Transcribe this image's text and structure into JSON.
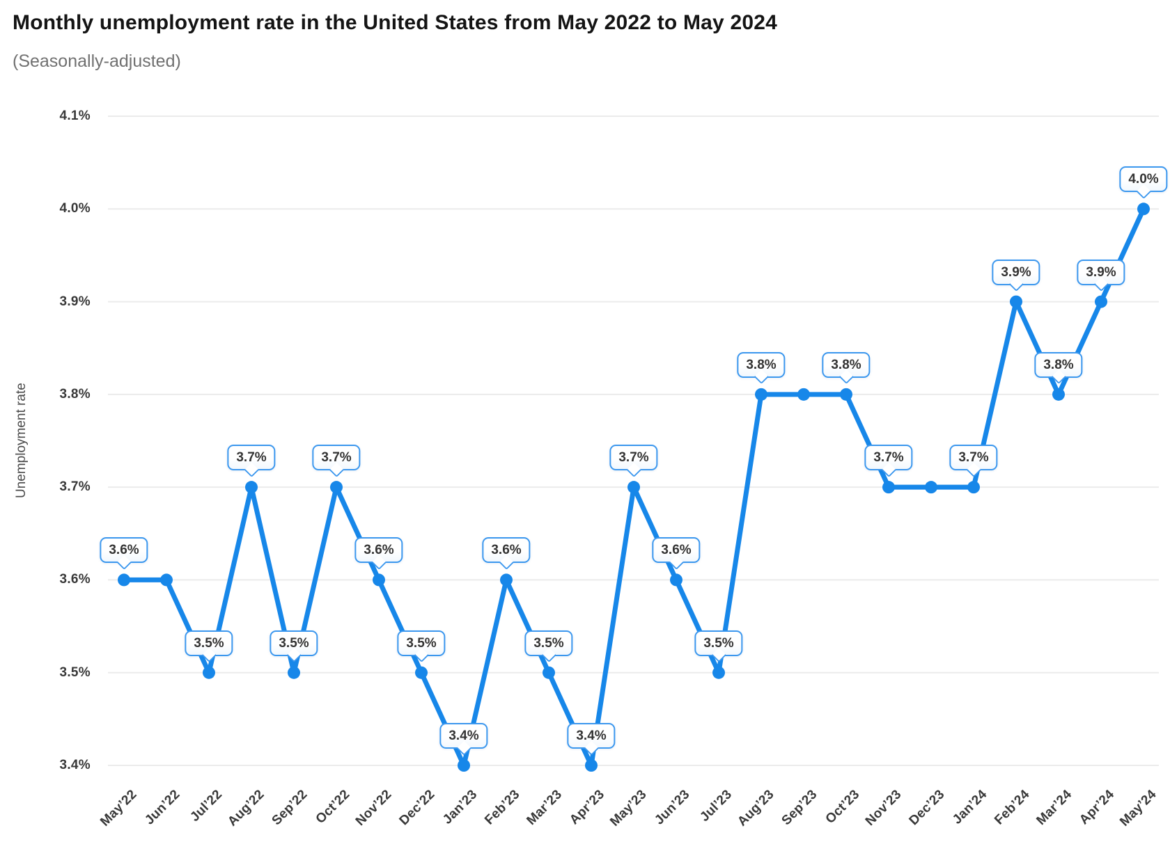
{
  "chart_data": {
    "type": "line",
    "title": "Monthly unemployment rate in the United States from May 2022 to May 2024",
    "subtitle": "(Seasonally-adjusted)",
    "xlabel": "",
    "ylabel": "Unemployment rate",
    "categories": [
      "May’22",
      "Jun’22",
      "Jul’22",
      "Aug’22",
      "Sep’22",
      "Oct’22",
      "Nov’22",
      "Dec’22",
      "Jan’23",
      "Feb’23",
      "Mar’23",
      "Apr’23",
      "May’23",
      "Jun’23",
      "Jul’23",
      "Aug’23",
      "Sep’23",
      "Oct’23",
      "Nov’23",
      "Dec’23",
      "Jan’24",
      "Feb’24",
      "Mar’24",
      "Apr’24",
      "May’24"
    ],
    "series": [
      {
        "name": "Unemployment rate",
        "values": [
          3.6,
          3.6,
          3.5,
          3.7,
          3.5,
          3.7,
          3.6,
          3.5,
          3.4,
          3.6,
          3.5,
          3.4,
          3.7,
          3.6,
          3.5,
          3.8,
          3.8,
          3.8,
          3.7,
          3.7,
          3.7,
          3.9,
          3.8,
          3.9,
          4.0
        ]
      }
    ],
    "point_labels": [
      "3.6%",
      null,
      "3.5%",
      "3.7%",
      "3.5%",
      "3.7%",
      "3.6%",
      "3.5%",
      "3.4%",
      "3.6%",
      "3.5%",
      "3.4%",
      "3.7%",
      "3.6%",
      "3.5%",
      "3.8%",
      null,
      "3.8%",
      "3.7%",
      null,
      "3.7%",
      "3.9%",
      "3.8%",
      "3.9%",
      "4.0%"
    ],
    "yticks": [
      {
        "value": 4.1,
        "label": "4.1%"
      },
      {
        "value": 4.0,
        "label": "4.0%"
      },
      {
        "value": 3.9,
        "label": "3.9%"
      },
      {
        "value": 3.8,
        "label": "3.8%"
      },
      {
        "value": 3.7,
        "label": "3.7%"
      },
      {
        "value": 3.6,
        "label": "3.6%"
      },
      {
        "value": 3.5,
        "label": "3.5%"
      },
      {
        "value": 3.4,
        "label": "3.4%"
      }
    ],
    "ylim": [
      3.4,
      4.1
    ],
    "grid": true,
    "legend": "none",
    "colors": {
      "line": "#1787e9",
      "marker": "#1787e9",
      "grid": "#ebebeb",
      "bubble_border": "#3b97ee",
      "bubble_text": "#333333",
      "axis_text": "#383838",
      "title": "#141414",
      "subtitle": "#707070"
    }
  }
}
